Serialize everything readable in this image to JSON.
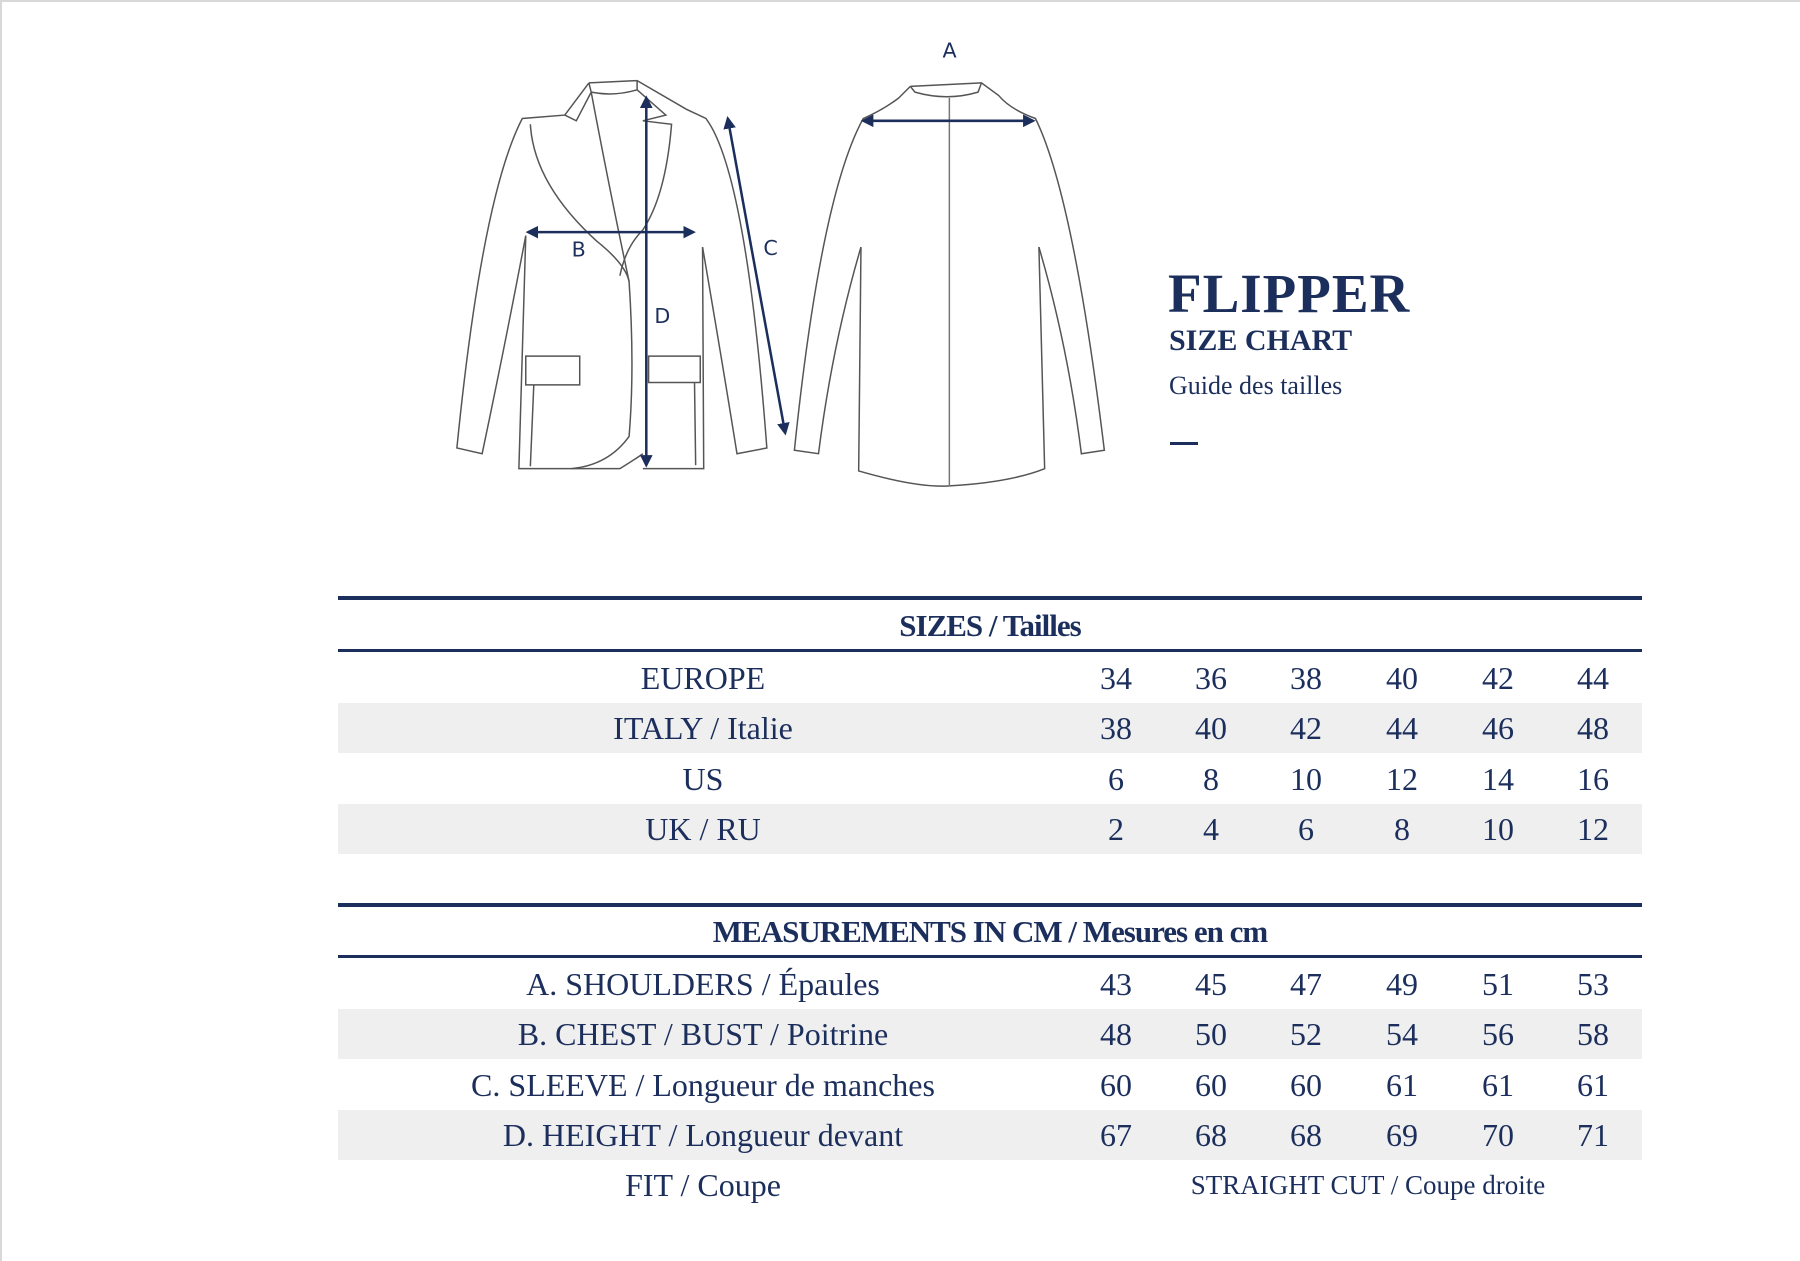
{
  "product": {
    "name": "FLIPPER",
    "subtitle": "SIZE CHART",
    "subtitle_fr": "Guide des tailles"
  },
  "diagram": {
    "labels": {
      "a": "A",
      "b": "B",
      "c": "C",
      "d": "D"
    }
  },
  "sizes": {
    "header": "SIZES / Tailles",
    "rows": [
      {
        "label": "EUROPE",
        "values": [
          "34",
          "36",
          "38",
          "40",
          "42",
          "44"
        ]
      },
      {
        "label": "ITALY / Italie",
        "values": [
          "38",
          "40",
          "42",
          "44",
          "46",
          "48"
        ]
      },
      {
        "label": "US",
        "values": [
          "6",
          "8",
          "10",
          "12",
          "14",
          "16"
        ]
      },
      {
        "label": "UK / RU",
        "values": [
          "2",
          "4",
          "6",
          "8",
          "10",
          "12"
        ]
      }
    ]
  },
  "measurements": {
    "header": "MEASUREMENTS IN CM / Mesures en cm",
    "rows": [
      {
        "label": "A. SHOULDERS / Épaules",
        "values": [
          "43",
          "45",
          "47",
          "49",
          "51",
          "53"
        ]
      },
      {
        "label": "B. CHEST / BUST / Poitrine",
        "values": [
          "48",
          "50",
          "52",
          "54",
          "56",
          "58"
        ]
      },
      {
        "label": "C. SLEEVE / Longueur de manches",
        "values": [
          "60",
          "60",
          "60",
          "61",
          "61",
          "61"
        ]
      },
      {
        "label": "D. HEIGHT / Longueur devant",
        "values": [
          "67",
          "68",
          "68",
          "69",
          "70",
          "71"
        ]
      }
    ],
    "fit": {
      "label": "FIT / Coupe",
      "value": "STRAIGHT CUT / Coupe droite"
    }
  },
  "colors": {
    "navy": "#1c2f5c",
    "row_shade": "#efefef",
    "line": "#555555"
  }
}
